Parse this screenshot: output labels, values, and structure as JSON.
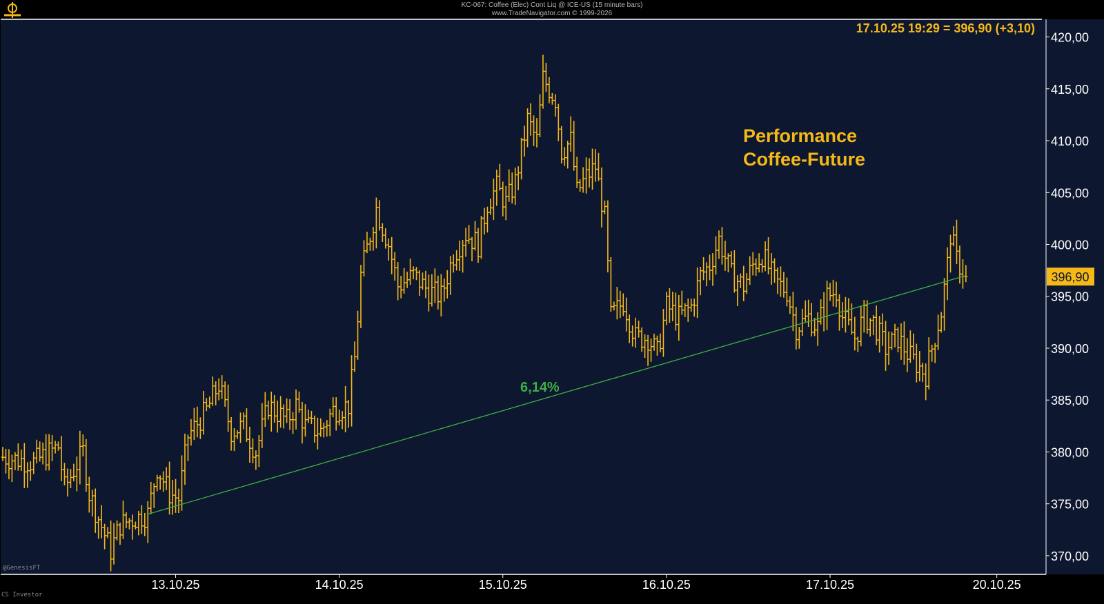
{
  "header": {
    "title": "KC-067: Coffee (Elec) Cont Liq @ ICE-US (15 minute bars)",
    "copyright": "www.TradeNavigator.com © 1999-2026"
  },
  "footer": {
    "source": "@GenesisFT",
    "watermark": "CS Investor"
  },
  "colors": {
    "background": "#0e1730",
    "frame": "#ffffff",
    "bars": "#f5b917",
    "trendline": "#3cb043",
    "price_tag": "#f5b917",
    "axis_text": "#ffffff"
  },
  "chart_data": {
    "type": "ohlc",
    "title": "Performance\nCoffee-Future",
    "quote": "17.10.25 19:29 = 396,90 (+3,10)",
    "last_price_label": "396,90",
    "last_price": 396.9,
    "y_ticks": [
      "420,00",
      "415,00",
      "410,00",
      "405,00",
      "400,00",
      "395,00",
      "390,00",
      "385,00",
      "380,00",
      "375,00",
      "370,00"
    ],
    "ylim": [
      368.2,
      421.7
    ],
    "x_ticks": [
      "13.10.25",
      "14.10.25",
      "15.10.25",
      "16.10.25",
      "17.10.25",
      "20.10.25"
    ],
    "x_tick_bar_index": [
      56,
      109,
      162,
      215,
      268,
      322
    ],
    "grid": false,
    "trendline": {
      "label": "6,14%",
      "start_bar": 47,
      "start_value": 374.0,
      "end_bar": 312,
      "end_value": 397.0
    },
    "price_path": [
      [
        0,
        379.5
      ],
      [
        10,
        379.0
      ],
      [
        18,
        380.5
      ],
      [
        20,
        376.5
      ],
      [
        26,
        380.0
      ],
      [
        28,
        376.0
      ],
      [
        33,
        372.0
      ],
      [
        35,
        370.5
      ],
      [
        38,
        373.0
      ],
      [
        42,
        373.5
      ],
      [
        47,
        374.0
      ],
      [
        50,
        378.5
      ],
      [
        54,
        376.0
      ],
      [
        57,
        375.5
      ],
      [
        60,
        381.5
      ],
      [
        66,
        384.0
      ],
      [
        70,
        386.5
      ],
      [
        74,
        382.0
      ],
      [
        78,
        382.5
      ],
      [
        82,
        380.0
      ],
      [
        86,
        384.5
      ],
      [
        92,
        383.0
      ],
      [
        95,
        384.5
      ],
      [
        98,
        382.5
      ],
      [
        103,
        382.0
      ],
      [
        107,
        384.0
      ],
      [
        112,
        384.5
      ],
      [
        114,
        389.0
      ],
      [
        116,
        397.0
      ],
      [
        121,
        403.5
      ],
      [
        125,
        400.0
      ],
      [
        128,
        396.0
      ],
      [
        133,
        397.0
      ],
      [
        138,
        395.5
      ],
      [
        142,
        395.0
      ],
      [
        146,
        399.0
      ],
      [
        150,
        401.0
      ],
      [
        154,
        400.0
      ],
      [
        157,
        404.0
      ],
      [
        160,
        405.5
      ],
      [
        163,
        404.0
      ],
      [
        166,
        406.0
      ],
      [
        170,
        412.0
      ],
      [
        173,
        410.0
      ],
      [
        175,
        416.0
      ],
      [
        179,
        414.0
      ],
      [
        181,
        409.0
      ],
      [
        184,
        410.0
      ],
      [
        186,
        405.0
      ],
      [
        189,
        406.5
      ],
      [
        192,
        407.5
      ],
      [
        195,
        402.5
      ],
      [
        197,
        393.0
      ],
      [
        201,
        394.5
      ],
      [
        205,
        391.0
      ],
      [
        209,
        391.0
      ],
      [
        212,
        389.5
      ],
      [
        215,
        394.0
      ],
      [
        219,
        393.0
      ],
      [
        223,
        394.0
      ],
      [
        226,
        397.0
      ],
      [
        229,
        398.0
      ],
      [
        232,
        400.5
      ],
      [
        236,
        397.0
      ],
      [
        240,
        396.0
      ],
      [
        243,
        398.0
      ],
      [
        246,
        399.0
      ],
      [
        250,
        396.5
      ],
      [
        254,
        395.5
      ],
      [
        257,
        392.0
      ],
      [
        261,
        393.0
      ],
      [
        264,
        392.0
      ],
      [
        267,
        395.0
      ],
      [
        270,
        395.5
      ],
      [
        272,
        393.0
      ],
      [
        276,
        391.0
      ],
      [
        279,
        393.0
      ],
      [
        282,
        392.5
      ],
      [
        286,
        390.0
      ],
      [
        290,
        391.0
      ],
      [
        293,
        389.5
      ],
      [
        296,
        388.5
      ],
      [
        299,
        387.5
      ],
      [
        301,
        390.0
      ],
      [
        304,
        393.5
      ],
      [
        306,
        398.0
      ],
      [
        307,
        401.0
      ],
      [
        309,
        398.5
      ],
      [
        312,
        397.0
      ]
    ]
  }
}
